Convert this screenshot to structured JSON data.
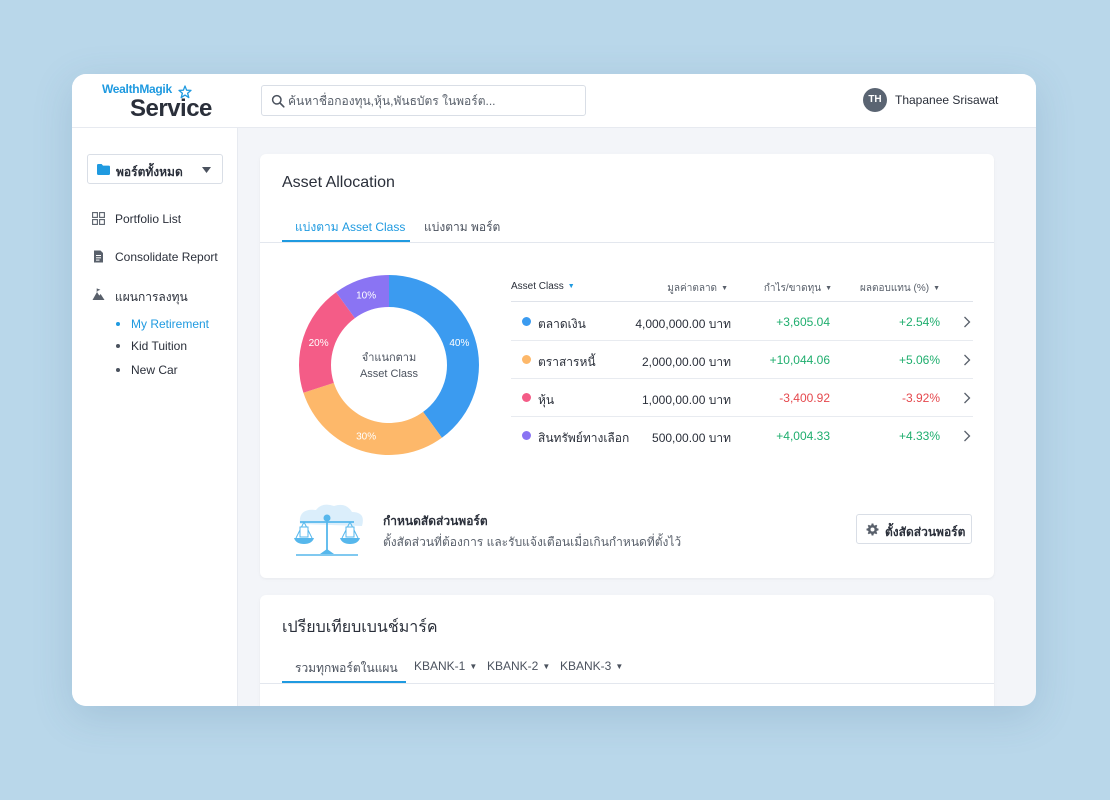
{
  "header": {
    "logo_top": "WealthMagik",
    "logo_bottom": "Service",
    "search_placeholder": "ค้นหาชื่อกองทุน,หุ้น,พันธบัตร ในพอร์ต...",
    "user_initials": "TH",
    "user_name": "Thapanee Srisawat"
  },
  "sidebar": {
    "portfolio_select": "พอร์ตทั้งหมด",
    "nav": [
      {
        "label": "Portfolio List",
        "icon": "grid-icon"
      },
      {
        "label": "Consolidate Report",
        "icon": "report-icon"
      },
      {
        "label": "แผนการลงทุน",
        "icon": "mountain-icon"
      }
    ],
    "plans": [
      {
        "label": "My Retirement",
        "active": true
      },
      {
        "label": "Kid Tuition",
        "active": false
      },
      {
        "label": "New Car",
        "active": false
      }
    ]
  },
  "allocation": {
    "title": "Asset  Allocation",
    "tabs": [
      {
        "label": "แบ่งตาม Asset Class",
        "active": true
      },
      {
        "label": "แบ่งตาม พอร์ต",
        "active": false
      }
    ],
    "donut_center_line1": "จำแนกตาม",
    "donut_center_line2": "Asset Class",
    "columns": {
      "asset_class": "Asset Class",
      "market_value": "มูลค่าตลาด",
      "gain_loss": "กำไร/ขาดทุน",
      "return_pct": "ผลตอบแทน (%)"
    },
    "rows": [
      {
        "name": "ตลาดเงิน",
        "value": "4,000,000.00 บาท",
        "gain": "+3,605.04",
        "ret": "+2.54%",
        "color": "#3b9bf0",
        "share": 40,
        "share_label": "40%"
      },
      {
        "name": "ตราสารหนี้",
        "value": "2,000,00.00 บาท",
        "gain": "+10,044.06",
        "ret": "+5.06%",
        "color": "#fdb86a",
        "share": 30,
        "share_label": "30%"
      },
      {
        "name": "หุ้น",
        "value": "1,000,00.00 บาท",
        "gain": "-3,400.92",
        "ret": "-3.92%",
        "color": "#f45c87",
        "share": 20,
        "share_label": "20%"
      },
      {
        "name": "สินทรัพย์ทางเลือก",
        "value": "500,00.00 บาท",
        "gain": "+4,004.33",
        "ret": "+4.33%",
        "color": "#8a74f3",
        "share": 10,
        "share_label": "10%"
      }
    ],
    "rebalance": {
      "title": "กำหนดสัดส่วนพอร์ต",
      "description": "ตั้งสัดส่วนที่ต้องการ และรับแจ้งเตือนเมื่อเกินกำหนดที่ตั้งไว้",
      "button": "ตั้งสัดส่วนพอร์ต"
    }
  },
  "benchmark": {
    "title": "เปรียบเทียบเบนช์มาร์ค",
    "tabs": [
      {
        "label": "รวมทุกพอร์ตในแผน",
        "active": true
      },
      {
        "label": "KBANK-1",
        "active": false
      },
      {
        "label": "KBANK-2",
        "active": false
      },
      {
        "label": "KBANK-3",
        "active": false
      }
    ]
  },
  "colors": {
    "accent": "#1f9ae0",
    "positive": "#1fae6e",
    "negative": "#e5484d"
  }
}
